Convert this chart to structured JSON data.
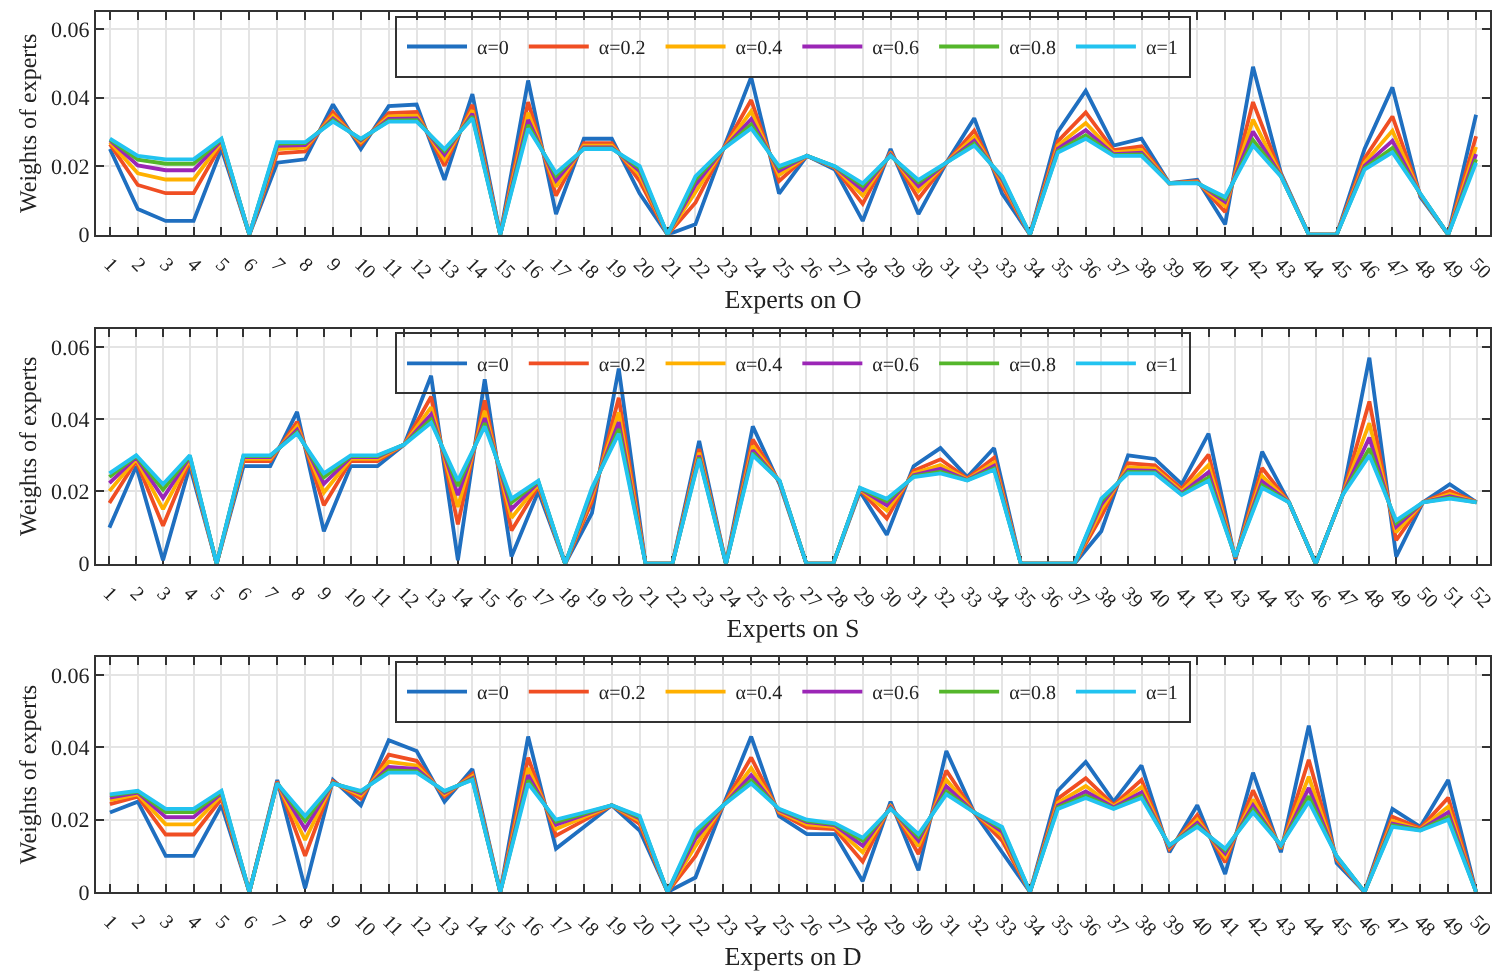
{
  "chart_data": [
    {
      "type": "line",
      "xlabel": "Experts on O",
      "ylabel": "Weights of experts",
      "ylim": [
        0,
        0.065
      ],
      "yticks": [
        0,
        0.02,
        0.04,
        0.06
      ],
      "grid": true,
      "legend": "top",
      "marker": "none",
      "line_style": "solid",
      "categories": [
        "1",
        "2",
        "3",
        "4",
        "5",
        "6",
        "7",
        "8",
        "9",
        "10",
        "11",
        "12",
        "13",
        "14",
        "15",
        "16",
        "17",
        "18",
        "19",
        "20",
        "21",
        "22",
        "23",
        "24",
        "25",
        "26",
        "27",
        "28",
        "29",
        "30",
        "31",
        "32",
        "33",
        "34",
        "35",
        "36",
        "37",
        "38",
        "39",
        "40",
        "41",
        "42",
        "43",
        "44",
        "45",
        "46",
        "47",
        "48",
        "49",
        "50"
      ],
      "series": [
        {
          "name": "α=0",
          "color": "#1f6fc0",
          "values": [
            0.025,
            0.0075,
            0.004,
            0.004,
            0.025,
            0,
            0.021,
            0.022,
            0.038,
            0.025,
            0.0375,
            0.038,
            0.016,
            0.041,
            0,
            0.045,
            0.006,
            0.028,
            0.028,
            0.012,
            0,
            0.003,
            0.025,
            0.046,
            0.012,
            0.023,
            0.019,
            0.004,
            0.025,
            0.006,
            0.021,
            0.034,
            0.012,
            0,
            0.03,
            0.042,
            0.026,
            0.028,
            0.015,
            0.016,
            0.003,
            0.049,
            0.018,
            0,
            0,
            0.025,
            0.043,
            0.011,
            0,
            0.035
          ]
        },
        {
          "name": "α=0.2",
          "color": "#f04e23",
          "values": [
            0.0264,
            0.0145,
            0.0121,
            0.0121,
            0.0264,
            0,
            0.0237,
            0.0243,
            0.0358,
            0.0264,
            0.0355,
            0.0358,
            0.0201,
            0.0379,
            0,
            0.0387,
            0.0114,
            0.0267,
            0.0267,
            0.0156,
            0,
            0.0093,
            0.025,
            0.0393,
            0.0156,
            0.023,
            0.0195,
            0.009,
            0.0241,
            0.0105,
            0.021,
            0.0304,
            0.0143,
            0,
            0.0273,
            0.0357,
            0.0247,
            0.0258,
            0.015,
            0.0156,
            0.0066,
            0.0387,
            0.0176,
            0,
            0,
            0.0223,
            0.0345,
            0.0115,
            0,
            0.0287
          ]
        },
        {
          "name": "α=0.4",
          "color": "#ffb000",
          "values": [
            0.027,
            0.0179,
            0.0161,
            0.0161,
            0.027,
            0,
            0.025,
            0.0254,
            0.0347,
            0.027,
            0.0345,
            0.0347,
            0.022,
            0.0363,
            0,
            0.0356,
            0.014,
            0.026,
            0.026,
            0.0174,
            0,
            0.0124,
            0.025,
            0.036,
            0.0174,
            0.023,
            0.0197,
            0.0114,
            0.0237,
            0.0127,
            0.021,
            0.0286,
            0.0154,
            0,
            0.026,
            0.0326,
            0.024,
            0.0247,
            0.015,
            0.0153,
            0.0084,
            0.0336,
            0.0173,
            0,
            0,
            0.021,
            0.0303,
            0.0117,
            0,
            0.0256
          ]
        },
        {
          "name": "α=0.6",
          "color": "#9b26b6",
          "values": [
            0.0275,
            0.0202,
            0.0188,
            0.0188,
            0.0275,
            0,
            0.0259,
            0.0261,
            0.0339,
            0.0275,
            0.0338,
            0.0339,
            0.0234,
            0.0353,
            0,
            0.0335,
            0.0158,
            0.0255,
            0.0255,
            0.0186,
            0,
            0.0145,
            0.025,
            0.0337,
            0.0186,
            0.023,
            0.0198,
            0.013,
            0.0234,
            0.0142,
            0.021,
            0.0274,
            0.0161,
            0,
            0.0251,
            0.0305,
            0.0235,
            0.0239,
            0.015,
            0.0152,
            0.0096,
            0.0301,
            0.0172,
            0,
            0,
            0.0201,
            0.0274,
            0.0118,
            0,
            0.0235
          ]
        },
        {
          "name": "α=0.8",
          "color": "#54b62b",
          "values": [
            0.0278,
            0.0219,
            0.0207,
            0.0207,
            0.0278,
            0,
            0.0266,
            0.0267,
            0.0334,
            0.0278,
            0.0333,
            0.0334,
            0.0244,
            0.0345,
            0,
            0.032,
            0.0172,
            0.0252,
            0.0252,
            0.0194,
            0,
            0.016,
            0.025,
            0.0321,
            0.0194,
            0.023,
            0.0199,
            0.0142,
            0.0231,
            0.0153,
            0.021,
            0.0266,
            0.0167,
            0,
            0.0244,
            0.029,
            0.0232,
            0.0234,
            0.015,
            0.0151,
            0.0104,
            0.0276,
            0.0171,
            0,
            0,
            0.0194,
            0.0253,
            0.0119,
            0,
            0.022
          ]
        },
        {
          "name": "α=1",
          "color": "#22c3f0",
          "values": [
            0.028,
            0.023,
            0.022,
            0.022,
            0.028,
            0,
            0.027,
            0.027,
            0.033,
            0.028,
            0.033,
            0.033,
            0.025,
            0.034,
            0,
            0.031,
            0.018,
            0.025,
            0.025,
            0.02,
            0,
            0.017,
            0.025,
            0.031,
            0.02,
            0.023,
            0.02,
            0.015,
            0.023,
            0.016,
            0.021,
            0.026,
            0.017,
            0,
            0.024,
            0.028,
            0.023,
            0.023,
            0.015,
            0.015,
            0.011,
            0.026,
            0.017,
            0,
            0,
            0.019,
            0.024,
            0.012,
            0,
            0.021
          ]
        }
      ]
    },
    {
      "type": "line",
      "xlabel": "Experts on S",
      "ylabel": "Weights of experts",
      "ylim": [
        0,
        0.065
      ],
      "yticks": [
        0,
        0.02,
        0.04,
        0.06
      ],
      "grid": true,
      "legend": "top",
      "marker": "none",
      "line_style": "solid",
      "categories": [
        "1",
        "2",
        "3",
        "4",
        "5",
        "6",
        "7",
        "8",
        "9",
        "10",
        "11",
        "12",
        "13",
        "14",
        "15",
        "16",
        "17",
        "18",
        "19",
        "20",
        "21",
        "22",
        "23",
        "24",
        "25",
        "26",
        "27",
        "28",
        "29",
        "30",
        "31",
        "32",
        "33",
        "34",
        "35",
        "36",
        "37",
        "38",
        "39",
        "40",
        "41",
        "42",
        "43",
        "44",
        "45",
        "46",
        "47",
        "48",
        "49",
        "50",
        "51",
        "52"
      ],
      "series": [
        {
          "name": "α=0",
          "color": "#1f6fc0",
          "values": [
            0.01,
            0.027,
            0.001,
            0.027,
            0,
            0.027,
            0.027,
            0.042,
            0.009,
            0.027,
            0.027,
            0.033,
            0.052,
            0.001,
            0.051,
            0.002,
            0.02,
            0,
            0.014,
            0.054,
            0,
            0,
            0.034,
            0,
            0.038,
            0.022,
            0,
            0,
            0.02,
            0.008,
            0.027,
            0.032,
            0.024,
            0.032,
            0,
            0,
            0,
            0.009,
            0.03,
            0.029,
            0.022,
            0.036,
            0.001,
            0.031,
            0.017,
            0,
            0.019,
            0.057,
            0.002,
            0.017,
            0.022,
            0.017
          ]
        },
        {
          "name": "α=0.2",
          "color": "#f04e23",
          "values": [
            0.0168,
            0.0284,
            0.0105,
            0.0284,
            0,
            0.0284,
            0.0284,
            0.0393,
            0.0162,
            0.0284,
            0.0284,
            0.033,
            0.0462,
            0.0109,
            0.0452,
            0.0092,
            0.0214,
            0,
            0.0172,
            0.0459,
            0,
            0,
            0.0318,
            0,
            0.0344,
            0.0225,
            0,
            0,
            0.0205,
            0.0125,
            0.0257,
            0.0289,
            0.0236,
            0.0293,
            0,
            0,
            0,
            0.0131,
            0.0278,
            0.0272,
            0.0207,
            0.0302,
            0.0015,
            0.0265,
            0.017,
            0,
            0.019,
            0.0449,
            0.0065,
            0.017,
            0.0202,
            0.017
          ]
        },
        {
          "name": "α=0.4",
          "color": "#ffb000",
          "values": [
            0.0201,
            0.029,
            0.0151,
            0.029,
            0,
            0.029,
            0.029,
            0.038,
            0.0197,
            0.029,
            0.029,
            0.033,
            0.0433,
            0.0157,
            0.0423,
            0.0127,
            0.022,
            0,
            0.0187,
            0.0419,
            0,
            0,
            0.0307,
            0,
            0.0326,
            0.0227,
            0,
            0,
            0.0207,
            0.0147,
            0.025,
            0.0273,
            0.0233,
            0.028,
            0,
            0,
            0,
            0.015,
            0.0267,
            0.0263,
            0.02,
            0.0273,
            0.0017,
            0.0243,
            0.017,
            0,
            0.019,
            0.0389,
            0.0087,
            0.017,
            0.0193,
            0.017
          ]
        },
        {
          "name": "α=0.6",
          "color": "#9b26b6",
          "values": [
            0.0223,
            0.0295,
            0.0182,
            0.0295,
            0,
            0.0295,
            0.0295,
            0.0371,
            0.0221,
            0.0295,
            0.0295,
            0.033,
            0.0413,
            0.019,
            0.0403,
            0.0151,
            0.0225,
            0,
            0.0197,
            0.0392,
            0,
            0,
            0.0299,
            0,
            0.0314,
            0.0228,
            0,
            0,
            0.0208,
            0.0162,
            0.0245,
            0.0263,
            0.0232,
            0.0271,
            0,
            0,
            0,
            0.0164,
            0.0259,
            0.0257,
            0.0195,
            0.0253,
            0.0018,
            0.0228,
            0.017,
            0,
            0.019,
            0.0349,
            0.0102,
            0.017,
            0.0187,
            0.017
          ]
        },
        {
          "name": "α=0.8",
          "color": "#54b62b",
          "values": [
            0.024,
            0.0298,
            0.0205,
            0.0298,
            0,
            0.0298,
            0.0298,
            0.0364,
            0.0239,
            0.0298,
            0.0298,
            0.033,
            0.0399,
            0.0215,
            0.0389,
            0.0169,
            0.0228,
            0,
            0.0205,
            0.0373,
            0,
            0,
            0.0294,
            0,
            0.0306,
            0.0229,
            0,
            0,
            0.0209,
            0.0173,
            0.0242,
            0.0255,
            0.0231,
            0.0264,
            0,
            0,
            0,
            0.0174,
            0.0254,
            0.0253,
            0.0192,
            0.0239,
            0.0019,
            0.0217,
            0.017,
            0,
            0.019,
            0.0319,
            0.0113,
            0.017,
            0.0183,
            0.017
          ]
        },
        {
          "name": "α=1",
          "color": "#22c3f0",
          "values": [
            0.025,
            0.03,
            0.022,
            0.03,
            0,
            0.03,
            0.03,
            0.036,
            0.025,
            0.03,
            0.03,
            0.033,
            0.039,
            0.023,
            0.038,
            0.018,
            0.023,
            0,
            0.021,
            0.036,
            0,
            0,
            0.029,
            0,
            0.03,
            0.023,
            0,
            0,
            0.021,
            0.018,
            0.024,
            0.025,
            0.023,
            0.026,
            0,
            0,
            0,
            0.018,
            0.025,
            0.025,
            0.019,
            0.023,
            0.002,
            0.021,
            0.017,
            0,
            0.019,
            0.03,
            0.012,
            0.017,
            0.018,
            0.017
          ]
        }
      ]
    },
    {
      "type": "line",
      "xlabel": "Experts on D",
      "ylabel": "Weights of experts",
      "ylim": [
        0,
        0.065
      ],
      "yticks": [
        0,
        0.02,
        0.04,
        0.06
      ],
      "grid": true,
      "legend": "top",
      "marker": "none",
      "line_style": "solid",
      "categories": [
        "1",
        "2",
        "3",
        "4",
        "5",
        "6",
        "7",
        "8",
        "9",
        "10",
        "11",
        "12",
        "13",
        "14",
        "15",
        "16",
        "17",
        "18",
        "19",
        "20",
        "21",
        "22",
        "23",
        "24",
        "25",
        "26",
        "27",
        "28",
        "29",
        "30",
        "31",
        "32",
        "33",
        "34",
        "35",
        "36",
        "37",
        "38",
        "39",
        "40",
        "41",
        "42",
        "43",
        "44",
        "45",
        "46",
        "47",
        "48",
        "49",
        "50"
      ],
      "series": [
        {
          "name": "α=0",
          "color": "#1f6fc0",
          "values": [
            0.022,
            0.025,
            0.01,
            0.01,
            0.024,
            0,
            0.031,
            0.001,
            0.031,
            0.024,
            0.042,
            0.039,
            0.025,
            0.034,
            0,
            0.043,
            0.012,
            0.018,
            0.024,
            0.017,
            0,
            0.004,
            0.024,
            0.043,
            0.021,
            0.016,
            0.016,
            0.003,
            0.025,
            0.006,
            0.039,
            0.022,
            0.011,
            0,
            0.028,
            0.036,
            0.025,
            0.035,
            0.011,
            0.024,
            0.005,
            0.033,
            0.011,
            0.046,
            0.008,
            0,
            0.023,
            0.018,
            0.031,
            0
          ]
        },
        {
          "name": "α=0.2",
          "color": "#f04e23",
          "values": [
            0.0243,
            0.0264,
            0.0159,
            0.0159,
            0.0258,
            0,
            0.0306,
            0.01,
            0.0306,
            0.0258,
            0.038,
            0.0363,
            0.0264,
            0.0327,
            0,
            0.0372,
            0.0156,
            0.0198,
            0.024,
            0.0188,
            0,
            0.0099,
            0.024,
            0.0372,
            0.0219,
            0.0178,
            0.0174,
            0.0084,
            0.0241,
            0.0105,
            0.0336,
            0.022,
            0.0142,
            0,
            0.0258,
            0.0315,
            0.0241,
            0.031,
            0.0119,
            0.0213,
            0.0082,
            0.0281,
            0.0119,
            0.0366,
            0.0089,
            0,
            0.0208,
            0.0176,
            0.0261,
            0
          ]
        },
        {
          "name": "α=0.4",
          "color": "#ffb000",
          "values": [
            0.0254,
            0.027,
            0.0187,
            0.0187,
            0.0267,
            0,
            0.0303,
            0.0144,
            0.0303,
            0.0267,
            0.036,
            0.035,
            0.027,
            0.032,
            0,
            0.0343,
            0.0174,
            0.0207,
            0.024,
            0.0197,
            0,
            0.0127,
            0.024,
            0.0343,
            0.0223,
            0.0187,
            0.018,
            0.011,
            0.0237,
            0.0127,
            0.031,
            0.022,
            0.0157,
            0,
            0.0247,
            0.0293,
            0.0237,
            0.029,
            0.0123,
            0.02,
            0.0097,
            0.0256,
            0.0123,
            0.0319,
            0.0093,
            0,
            0.0197,
            0.0173,
            0.0236,
            0
          ]
        },
        {
          "name": "α=0.6",
          "color": "#9b26b6",
          "values": [
            0.0261,
            0.0275,
            0.0207,
            0.0207,
            0.0273,
            0,
            0.0302,
            0.0174,
            0.0302,
            0.0273,
            0.0346,
            0.0341,
            0.0275,
            0.0315,
            0,
            0.0323,
            0.0186,
            0.0213,
            0.024,
            0.0203,
            0,
            0.0147,
            0.024,
            0.0323,
            0.0226,
            0.0193,
            0.0185,
            0.0128,
            0.0234,
            0.0142,
            0.0292,
            0.022,
            0.0167,
            0,
            0.0239,
            0.0278,
            0.0234,
            0.0276,
            0.0126,
            0.0191,
            0.0107,
            0.024,
            0.0126,
            0.0288,
            0.0096,
            0,
            0.0189,
            0.0172,
            0.022,
            0
          ]
        },
        {
          "name": "α=0.8",
          "color": "#54b62b",
          "values": [
            0.0267,
            0.0278,
            0.0221,
            0.0221,
            0.0277,
            0,
            0.0301,
            0.0196,
            0.0301,
            0.0277,
            0.0336,
            0.0334,
            0.0278,
            0.0312,
            0,
            0.0309,
            0.0194,
            0.0217,
            0.024,
            0.0207,
            0,
            0.0161,
            0.024,
            0.0309,
            0.0229,
            0.0197,
            0.0188,
            0.0142,
            0.0231,
            0.0153,
            0.0278,
            0.022,
            0.0175,
            0,
            0.0234,
            0.0267,
            0.0231,
            0.0266,
            0.0129,
            0.0184,
            0.0115,
            0.0228,
            0.0129,
            0.0265,
            0.0099,
            0,
            0.0184,
            0.0171,
            0.0208,
            0
          ]
        },
        {
          "name": "α=1",
          "color": "#22c3f0",
          "values": [
            0.027,
            0.028,
            0.023,
            0.023,
            0.028,
            0,
            0.03,
            0.021,
            0.03,
            0.028,
            0.033,
            0.033,
            0.028,
            0.031,
            0,
            0.03,
            0.02,
            0.022,
            0.024,
            0.021,
            0,
            0.017,
            0.024,
            0.03,
            0.023,
            0.02,
            0.019,
            0.015,
            0.023,
            0.016,
            0.027,
            0.022,
            0.018,
            0,
            0.023,
            0.026,
            0.023,
            0.026,
            0.013,
            0.018,
            0.012,
            0.022,
            0.013,
            0.025,
            0.01,
            0,
            0.018,
            0.017,
            0.02,
            0
          ]
        }
      ]
    }
  ]
}
